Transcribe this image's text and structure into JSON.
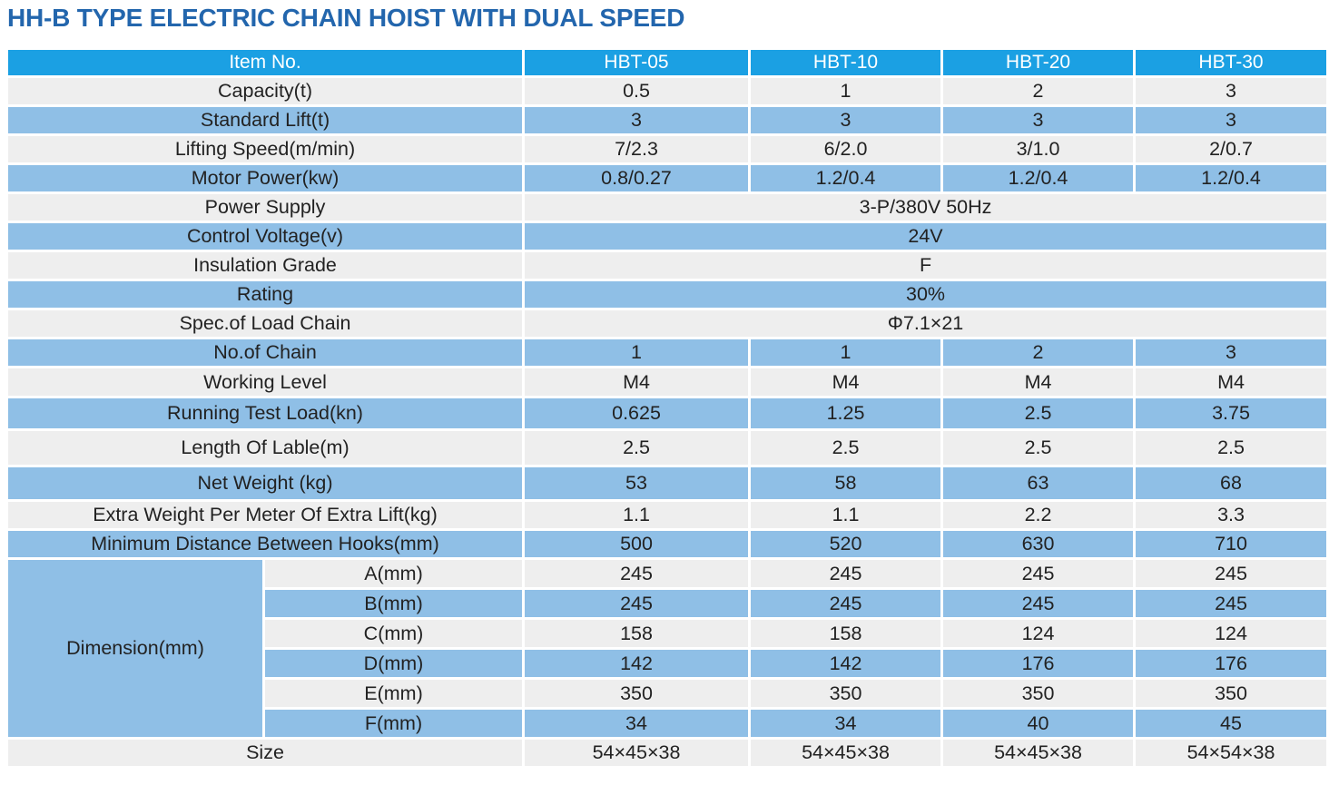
{
  "title": "HH-B TYPE ELECTRIC CHAIN HOIST WITH DUAL SPEED",
  "header": {
    "item": "Item No.",
    "models": [
      "HBT-05",
      "HBT-10",
      "HBT-20",
      "HBT-30"
    ]
  },
  "rows": {
    "capacity": {
      "label": "Capacity(t)",
      "values": [
        "0.5",
        "1",
        "2",
        "3"
      ]
    },
    "standard_lift": {
      "label": "Standard Lift(t)",
      "values": [
        "3",
        "3",
        "3",
        "3"
      ]
    },
    "lifting_speed": {
      "label": "Lifting Speed(m/min)",
      "values": [
        "7/2.3",
        "6/2.0",
        "3/1.0",
        "2/0.7"
      ]
    },
    "motor_power": {
      "label": "Motor Power(kw)",
      "values": [
        "0.8/0.27",
        "1.2/0.4",
        "1.2/0.4",
        "1.2/0.4"
      ]
    },
    "power_supply": {
      "label": "Power Supply",
      "value": "3-P/380V 50Hz"
    },
    "control_voltage": {
      "label": "Control Voltage(v)",
      "value": "24V"
    },
    "insulation": {
      "label": "Insulation Grade",
      "value": "F"
    },
    "rating": {
      "label": "Rating",
      "value": "30%"
    },
    "load_chain": {
      "label": "Spec.of Load Chain",
      "value": "Φ7.1×21"
    },
    "no_chain": {
      "label": "No.of Chain",
      "values": [
        "1",
        "1",
        "2",
        "3"
      ]
    },
    "working_level": {
      "label": "Working Level",
      "values": [
        "M4",
        "M4",
        "M4",
        "M4"
      ]
    },
    "test_load": {
      "label": "Running Test Load(kn)",
      "values": [
        "0.625",
        "1.25",
        "2.5",
        "3.75"
      ]
    },
    "cable_length": {
      "label": "Length Of Lable(m)",
      "values": [
        "2.5",
        "2.5",
        "2.5",
        "2.5"
      ]
    },
    "net_weight": {
      "label": "Net Weight (kg)",
      "values": [
        "53",
        "58",
        "63",
        "68"
      ]
    },
    "extra_weight": {
      "label": "Extra Weight Per Meter Of Extra Lift(kg)",
      "values": [
        "1.1",
        "1.1",
        "2.2",
        "3.3"
      ]
    },
    "min_distance": {
      "label": "Minimum Distance Between Hooks(mm)",
      "values": [
        "500",
        "520",
        "630",
        "710"
      ]
    }
  },
  "dimension": {
    "label": "Dimension(mm)",
    "rows": [
      {
        "label": "A(mm)",
        "values": [
          "245",
          "245",
          "245",
          "245"
        ]
      },
      {
        "label": "B(mm)",
        "values": [
          "245",
          "245",
          "245",
          "245"
        ]
      },
      {
        "label": "C(mm)",
        "values": [
          "158",
          "158",
          "124",
          "124"
        ]
      },
      {
        "label": "D(mm)",
        "values": [
          "142",
          "142",
          "176",
          "176"
        ]
      },
      {
        "label": "E(mm)",
        "values": [
          "350",
          "350",
          "350",
          "350"
        ]
      },
      {
        "label": "F(mm)",
        "values": [
          "34",
          "34",
          "40",
          "45"
        ]
      }
    ]
  },
  "size": {
    "label": "Size",
    "values": [
      "54×45×38",
      "54×45×38",
      "54×45×38",
      "54×54×38"
    ]
  }
}
